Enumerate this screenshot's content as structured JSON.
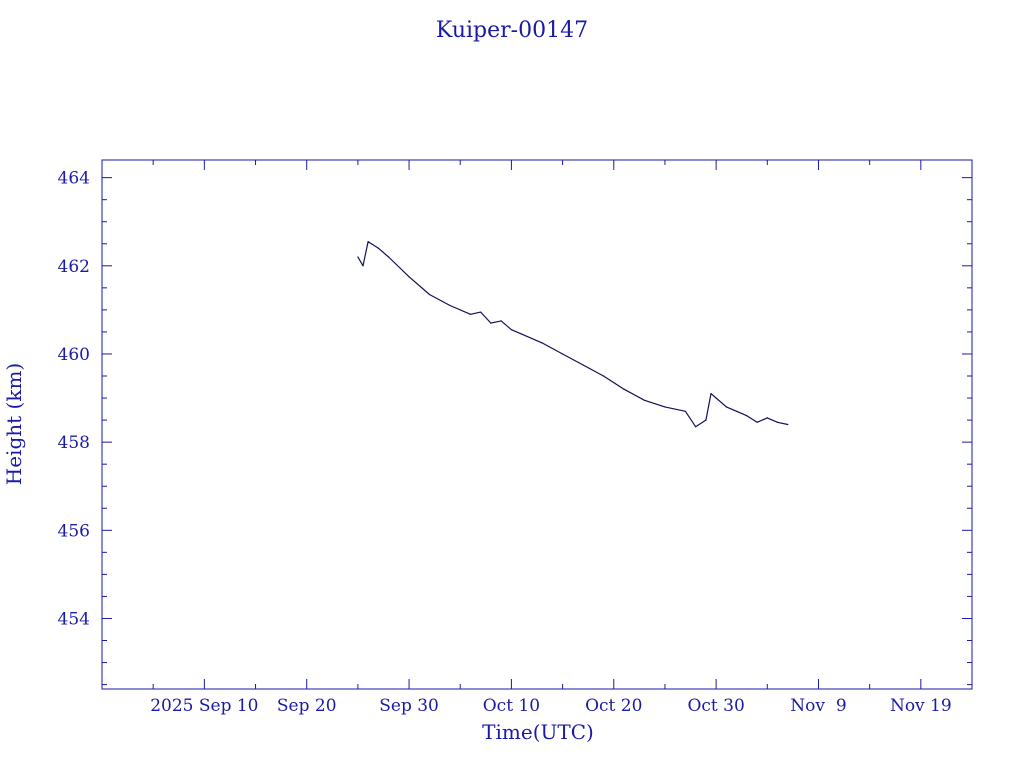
{
  "chart_data": {
    "type": "line",
    "title": "Kuiper-00147",
    "xlabel": "Time(UTC)",
    "ylabel": "Height (km)",
    "x_tick_labels": [
      "2025 Sep 10",
      "Sep 20",
      "Sep 30",
      "Oct 10",
      "Oct 20",
      "Oct 30",
      "Nov  9",
      "Nov 19"
    ],
    "x_tick_dates": [
      "2025-09-10",
      "2025-09-20",
      "2025-09-30",
      "2025-10-10",
      "2025-10-20",
      "2025-10-30",
      "2025-11-09",
      "2025-11-19"
    ],
    "xlim": [
      "2025-08-31",
      "2025-11-24"
    ],
    "y_tick_labels": [
      "454",
      "456",
      "458",
      "460",
      "462",
      "464"
    ],
    "ylim": [
      452.4,
      464.4
    ],
    "grid": false,
    "colors": {
      "axis": "#1a1aa6",
      "text": "#1a1aa6",
      "line": "#10105a",
      "background": "#ffffff"
    },
    "series": [
      {
        "x": [
          "2025-09-25",
          "2025-09-25 12:00",
          "2025-09-26",
          "2025-09-27",
          "2025-09-28",
          "2025-09-30",
          "2025-10-02",
          "2025-10-04",
          "2025-10-06",
          "2025-10-07",
          "2025-10-08",
          "2025-10-09",
          "2025-10-10",
          "2025-10-11",
          "2025-10-13",
          "2025-10-15",
          "2025-10-17",
          "2025-10-19",
          "2025-10-21",
          "2025-10-23",
          "2025-10-25",
          "2025-10-27",
          "2025-10-28",
          "2025-10-29",
          "2025-10-29 12:00",
          "2025-10-30",
          "2025-10-31",
          "2025-11-01",
          "2025-11-02",
          "2025-11-03",
          "2025-11-04",
          "2025-11-05",
          "2025-11-06"
        ],
        "y": [
          462.2,
          462.0,
          462.55,
          462.4,
          462.2,
          461.75,
          461.35,
          461.1,
          460.9,
          460.95,
          460.7,
          460.75,
          460.55,
          460.45,
          460.25,
          460.0,
          459.75,
          459.5,
          459.2,
          458.95,
          458.8,
          458.7,
          458.35,
          458.5,
          459.1,
          459.0,
          458.8,
          458.7,
          458.6,
          458.45,
          458.55,
          458.45,
          458.4
        ]
      }
    ]
  }
}
